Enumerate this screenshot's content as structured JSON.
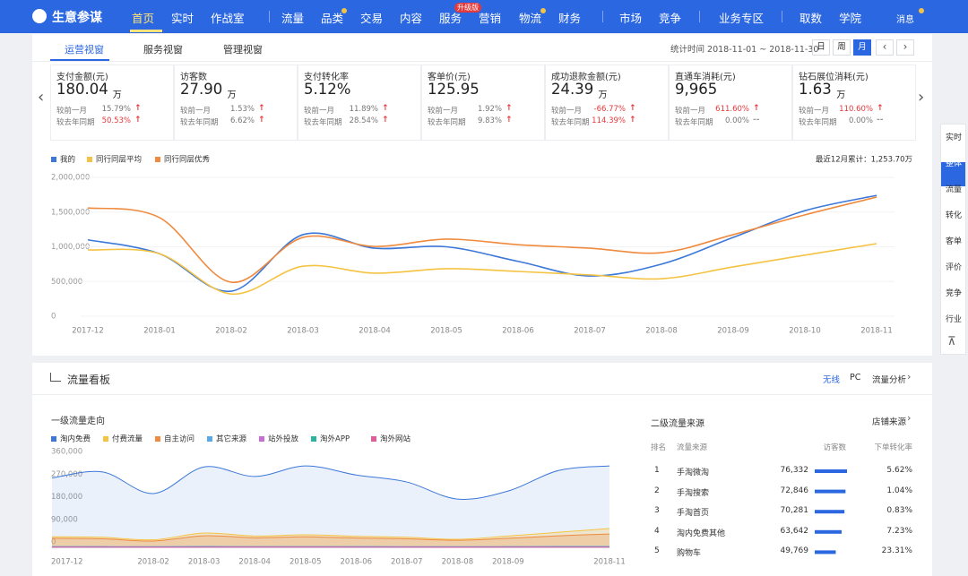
{
  "nav": {
    "logo": "生意参谋",
    "items": [
      "首页",
      "实时",
      "作战室",
      "流量",
      "品类",
      "交易",
      "内容",
      "服务",
      "营销",
      "物流",
      "财务",
      "市场",
      "竞争",
      "业务专区",
      "取数",
      "学院"
    ],
    "badge": "升级版",
    "message": "消息"
  },
  "tabs": [
    "运营视窗",
    "服务视窗",
    "管理视窗"
  ],
  "period": {
    "label": "统计时间 2018-11-01 ~ 2018-11-30",
    "buttons": [
      "日",
      "周",
      "月"
    ]
  },
  "kpis": [
    {
      "name": "支付金额(元)",
      "value": "180.04",
      "unit": "万",
      "compare": [
        {
          "label": "较前一月",
          "value": "15.79%",
          "trend": "↑"
        },
        {
          "label": "较去年同期",
          "value": "50.53%",
          "trend": "↑",
          "color": "#e4393c"
        }
      ]
    },
    {
      "name": "访客数",
      "value": "27.90",
      "unit": "万",
      "compare": [
        {
          "label": "较前一月",
          "value": "1.53%",
          "trend": "↑"
        },
        {
          "label": "较去年同期",
          "value": "6.62%",
          "trend": "↑"
        }
      ]
    },
    {
      "name": "支付转化率",
      "value": "5.12%",
      "compare": [
        {
          "label": "较前一月",
          "value": "11.89%",
          "trend": "↑"
        },
        {
          "label": "较去年同期",
          "value": "28.54%",
          "trend": "↑"
        }
      ]
    },
    {
      "name": "客单价(元)",
      "value": "125.95",
      "compare": [
        {
          "label": "较前一月",
          "value": "1.92%",
          "trend": "↑"
        },
        {
          "label": "较去年同期",
          "value": "9.83%",
          "trend": "↑"
        }
      ]
    },
    {
      "name": "成功退款金额(元)",
      "value": "24.39",
      "unit": "万",
      "compare": [
        {
          "label": "较前一月",
          "value": "-66.77%",
          "trend": "↑",
          "color": "#e4393c"
        },
        {
          "label": "较去年同期",
          "value": "114.39%",
          "trend": "↑",
          "color": "#e4393c"
        }
      ]
    },
    {
      "name": "直通车消耗(元)",
      "value": "9,965",
      "compare": [
        {
          "label": "较前一月",
          "value": "611.60%",
          "trend": "↑",
          "color": "#e4393c"
        },
        {
          "label": "较去年同期",
          "value": "0.00%",
          "trend": "--"
        }
      ]
    },
    {
      "name": "钻石展位消耗(元)",
      "value": "1.63",
      "unit": "万",
      "compare": [
        {
          "label": "较前一月",
          "value": "110.60%",
          "trend": "↑",
          "color": "#e4393c"
        },
        {
          "label": "较去年同期",
          "value": "0.00%",
          "trend": "--"
        }
      ]
    }
  ],
  "chart_data": [
    {
      "type": "line",
      "annotation": "最近12月累计：1,253.70万",
      "categories": [
        "2017-12",
        "2018-01",
        "2018-02",
        "2018-03",
        "2018-04",
        "2018-05",
        "2018-06",
        "2018-07",
        "2018-08",
        "2018-09",
        "2018-10",
        "2018-11"
      ],
      "series": [
        {
          "name": "我的",
          "color": "#3c78d8",
          "values": [
            1100000,
            900000,
            360000,
            1175000,
            980000,
            1000000,
            790000,
            580000,
            750000,
            1135000,
            1520000,
            1740000
          ]
        },
        {
          "name": "同行同层平均",
          "color": "#f5c342",
          "values": [
            955000,
            900000,
            320000,
            720000,
            620000,
            685000,
            645000,
            595000,
            540000,
            710000,
            880000,
            1045000
          ]
        },
        {
          "name": "同行同层优秀",
          "color": "#f08a3e",
          "values": [
            1560000,
            1420000,
            490000,
            1135000,
            1005000,
            1110000,
            1030000,
            980000,
            915000,
            1175000,
            1460000,
            1715000
          ]
        }
      ],
      "ylim": [
        0,
        2000000
      ],
      "yticks": [
        0,
        {
          "value": 500000,
          "label": "500,000"
        },
        {
          "value": 1000000,
          "label": "1,000,000"
        },
        {
          "value": 1500000,
          "label": "1,500,000"
        },
        {
          "value": 2000000,
          "label": "2,000,000"
        }
      ],
      "grid": true
    },
    {
      "type": "area",
      "categories": [
        "2017-12",
        null,
        "2018-02",
        "2018-03",
        "2018-04",
        "2018-05",
        "2018-06",
        "2018-07",
        "2018-08",
        "2018-09",
        null,
        "2018-11"
      ],
      "series": [
        {
          "name": "淘内免费",
          "color": "#3c78d8",
          "values": [
            276000,
            300000,
            214000,
            320000,
            282000,
            324000,
            288000,
            260000,
            192000,
            224000,
            306000,
            324000
          ]
        },
        {
          "name": "付费流量",
          "color": "#f5c342",
          "values": [
            42000,
            40000,
            30000,
            57000,
            45000,
            50000,
            44000,
            40000,
            32000,
            45000,
            60000,
            75000
          ]
        },
        {
          "name": "自主访问",
          "color": "#f08a3e",
          "values": [
            36000,
            34000,
            25000,
            46000,
            38000,
            42000,
            37000,
            34000,
            28000,
            36000,
            46000,
            53000
          ]
        },
        {
          "name": "其它来源",
          "color": "#5aa9e6",
          "values": [
            3000,
            3000,
            2500,
            3500,
            3000,
            3200,
            3000,
            2800,
            2500,
            3000,
            3400,
            3600
          ]
        },
        {
          "name": "站外投放",
          "color": "#c86dd7",
          "values": [
            1200,
            1100,
            900,
            1300,
            1200,
            1200,
            1100,
            1000,
            900,
            1100,
            1300,
            1400
          ]
        },
        {
          "name": "淘外APP",
          "color": "#2bb3a0",
          "values": [
            600,
            600,
            500,
            700,
            600,
            600,
            600,
            500,
            500,
            600,
            700,
            700
          ]
        },
        {
          "name": "淘外网站",
          "color": "#e05d9c",
          "values": [
            300,
            300,
            200,
            300,
            300,
            300,
            300,
            300,
            200,
            300,
            300,
            400
          ]
        }
      ],
      "ylim": [
        0,
        360000
      ],
      "yticks": [
        0,
        {
          "value": 90000,
          "label": "90,000"
        },
        {
          "value": 180000,
          "label": "180,000"
        },
        {
          "value": 270000,
          "label": "270,000"
        },
        {
          "value": 360000,
          "label": "360,000"
        }
      ],
      "grid": false
    }
  ],
  "side_nav": [
    "实时",
    "整体",
    "流量",
    "转化",
    "客单",
    "评价",
    "竞争",
    "行业"
  ],
  "traffic": {
    "title": "流量看板",
    "options": [
      "无线",
      "PC",
      "流量分析"
    ],
    "subtitle": "一级流量走向"
  },
  "sources": {
    "title": "二级流量来源",
    "link": "店铺来源",
    "headers": [
      "排名",
      "流量来源",
      "访客数",
      "下单转化率"
    ],
    "rows": [
      {
        "rank": "1",
        "name": "手淘微淘",
        "visitors": {
          "value": 76332,
          "label": "76,332"
        },
        "rate": "5.62%"
      },
      {
        "rank": "2",
        "name": "手淘搜索",
        "visitors": {
          "value": 72846,
          "label": "72,846"
        },
        "rate": "1.04%"
      },
      {
        "rank": "3",
        "name": "手淘首页",
        "visitors": {
          "value": 70281,
          "label": "70,281"
        },
        "rate": "0.83%"
      },
      {
        "rank": "4",
        "name": "淘内免费其他",
        "visitors": {
          "value": 63642,
          "label": "63,642"
        },
        "rate": "7.23%"
      },
      {
        "rank": "5",
        "name": "购物车",
        "visitors": {
          "value": 49769,
          "label": "49,769"
        },
        "rate": "23.31%"
      }
    ]
  }
}
